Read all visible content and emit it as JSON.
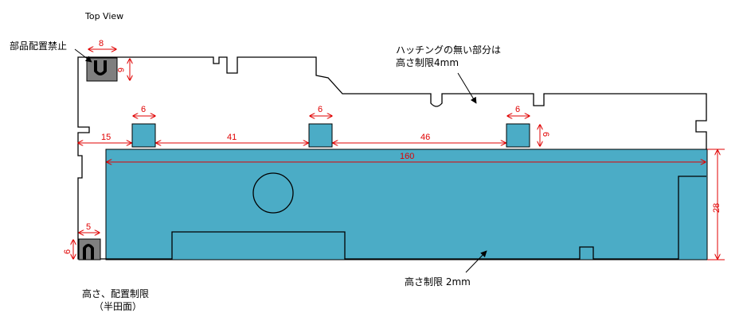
{
  "title": "Top View",
  "labels": {
    "keepout": "部品配置禁止",
    "upper_note_line1": "ハッチングの無い部分は",
    "upper_note_line2": "高さ制限4mm",
    "lower_note": "高さ制限 2mm",
    "bottom_note_line1": "高さ、配置制限",
    "bottom_note_line2": "（半田面）"
  },
  "dimensions": {
    "keepout_width": "8",
    "keepout_height": "6",
    "pad_width_1": "6",
    "pad_width_2": "6",
    "pad_width_3": "6",
    "pad_height": "6",
    "offset_left": "15",
    "spacing_1": "41",
    "spacing_2": "46",
    "total_length": "160",
    "total_height": "28",
    "corner_width": "5",
    "corner_height": "6"
  },
  "colors": {
    "outline": "#000000",
    "hatch_area": "#4bacc6",
    "keepout_fill": "#7f7f7f",
    "dimension": "#e00000"
  }
}
